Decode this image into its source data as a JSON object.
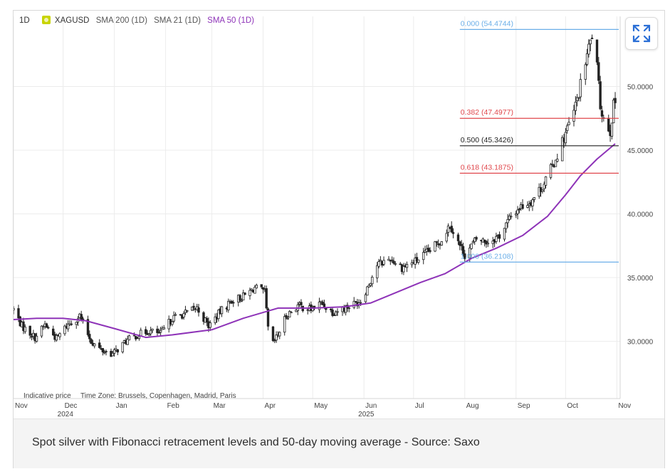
{
  "legend": {
    "timeframe": "1D",
    "symbol": "XAGUSD",
    "sma200": "SMA 200 (1D)",
    "sma21": "SMA 21 (1D)",
    "sma50": "SMA 50 (1D)"
  },
  "footer": {
    "indicative": "Indicative price",
    "timezone": "Time Zone: Brussels, Copenhagen, Madrid, Paris"
  },
  "caption": "Spot silver with Fibonacci retracement levels and 50-day moving average - Source: Saxo",
  "icons": {
    "expand": "expand-arrows-icon",
    "logo": "xagusd-logo-icon"
  },
  "colors": {
    "candle": "#222222",
    "sma50": "#8e33b8",
    "fib_blue": "#6aaee8",
    "fib_red": "#e0474c",
    "fib_black": "#222222",
    "expand_icon": "#2b6fd6"
  },
  "chart_data": {
    "type": "candlestick",
    "instrument": "XAGUSD",
    "timeframe": "1D",
    "ylim": [
      25.5,
      55.5
    ],
    "y_ticks": [
      {
        "value": 30,
        "label": "30.0000"
      },
      {
        "value": 35,
        "label": "35.0000"
      },
      {
        "value": 40,
        "label": "40.0000"
      },
      {
        "value": 45,
        "label": "45.0000"
      },
      {
        "value": 50,
        "label": "50.0000"
      }
    ],
    "x_ticks": [
      {
        "date": "2024-11-01",
        "label": "Nov",
        "year_label": ""
      },
      {
        "date": "2024-12-01",
        "label": "Dec",
        "year_label": "2024"
      },
      {
        "date": "2025-01-01",
        "label": "Jan",
        "year_label": ""
      },
      {
        "date": "2025-02-01",
        "label": "Feb",
        "year_label": ""
      },
      {
        "date": "2025-03-01",
        "label": "Mar",
        "year_label": ""
      },
      {
        "date": "2025-04-01",
        "label": "Apr",
        "year_label": ""
      },
      {
        "date": "2025-05-01",
        "label": "May",
        "year_label": ""
      },
      {
        "date": "2025-06-01",
        "label": "Jun",
        "year_label": "2025"
      },
      {
        "date": "2025-07-01",
        "label": "Jul",
        "year_label": ""
      },
      {
        "date": "2025-08-01",
        "label": "Aug",
        "year_label": ""
      },
      {
        "date": "2025-09-01",
        "label": "Sep",
        "year_label": ""
      },
      {
        "date": "2025-10-01",
        "label": "Oct",
        "year_label": ""
      },
      {
        "date": "2025-11-01",
        "label": "Nov",
        "year_label": ""
      }
    ],
    "x_range": [
      "2024-11-01",
      "2025-11-03"
    ],
    "price_path": [
      [
        "2024-11-01",
        32.5
      ],
      [
        "2024-11-06",
        31.2
      ],
      [
        "2024-11-14",
        30.3
      ],
      [
        "2024-11-20",
        31.3
      ],
      [
        "2024-11-27",
        30.2
      ],
      [
        "2024-12-03",
        31.2
      ],
      [
        "2024-12-11",
        32.0
      ],
      [
        "2024-12-18",
        30.0
      ],
      [
        "2024-12-24",
        29.3
      ],
      [
        "2024-12-31",
        29.0
      ],
      [
        "2025-01-08",
        30.0
      ],
      [
        "2025-01-15",
        30.5
      ],
      [
        "2025-01-22",
        30.8
      ],
      [
        "2025-01-29",
        30.6
      ],
      [
        "2025-02-05",
        31.8
      ],
      [
        "2025-02-13",
        32.2
      ],
      [
        "2025-02-20",
        32.6
      ],
      [
        "2025-02-27",
        31.2
      ],
      [
        "2025-03-06",
        32.3
      ],
      [
        "2025-03-13",
        33.2
      ],
      [
        "2025-03-20",
        33.5
      ],
      [
        "2025-03-27",
        34.2
      ],
      [
        "2025-04-02",
        33.8
      ],
      [
        "2025-04-04",
        31.0
      ],
      [
        "2025-04-07",
        29.8
      ],
      [
        "2025-04-10",
        30.5
      ],
      [
        "2025-04-15",
        32.0
      ],
      [
        "2025-04-22",
        32.8
      ],
      [
        "2025-04-30",
        32.5
      ],
      [
        "2025-05-06",
        33.0
      ],
      [
        "2025-05-13",
        32.3
      ],
      [
        "2025-05-20",
        32.6
      ],
      [
        "2025-05-27",
        33.0
      ],
      [
        "2025-05-30",
        33.2
      ],
      [
        "2025-06-04",
        34.5
      ],
      [
        "2025-06-09",
        36.0
      ],
      [
        "2025-06-17",
        36.5
      ],
      [
        "2025-06-24",
        35.8
      ],
      [
        "2025-07-01",
        36.2
      ],
      [
        "2025-07-10",
        37.0
      ],
      [
        "2025-07-18",
        38.0
      ],
      [
        "2025-07-23",
        39.2
      ],
      [
        "2025-07-29",
        37.5
      ],
      [
        "2025-08-01",
        36.8
      ],
      [
        "2025-08-08",
        38.0
      ],
      [
        "2025-08-15",
        37.8
      ],
      [
        "2025-08-22",
        38.3
      ],
      [
        "2025-08-29",
        39.8
      ],
      [
        "2025-09-03",
        40.5
      ],
      [
        "2025-09-10",
        41.0
      ],
      [
        "2025-09-17",
        42.2
      ],
      [
        "2025-09-24",
        44.0
      ],
      [
        "2025-09-30",
        46.0
      ],
      [
        "2025-10-06",
        48.0
      ],
      [
        "2025-10-09",
        49.5
      ],
      [
        "2025-10-14",
        52.5
      ],
      [
        "2025-10-17",
        54.0
      ],
      [
        "2025-10-20",
        51.5
      ],
      [
        "2025-10-22",
        48.5
      ],
      [
        "2025-10-24",
        47.5
      ],
      [
        "2025-10-28",
        46.5
      ],
      [
        "2025-10-30",
        48.5
      ],
      [
        "2025-10-31",
        48.8
      ]
    ],
    "sma50": [
      [
        "2024-11-01",
        31.7
      ],
      [
        "2024-11-15",
        31.8
      ],
      [
        "2024-12-01",
        31.8
      ],
      [
        "2024-12-15",
        31.6
      ],
      [
        "2025-01-01",
        31.0
      ],
      [
        "2025-01-20",
        30.3
      ],
      [
        "2025-02-05",
        30.5
      ],
      [
        "2025-03-01",
        30.9
      ],
      [
        "2025-03-20",
        31.8
      ],
      [
        "2025-04-10",
        32.6
      ],
      [
        "2025-05-01",
        32.6
      ],
      [
        "2025-05-20",
        32.7
      ],
      [
        "2025-06-05",
        33.0
      ],
      [
        "2025-06-20",
        33.8
      ],
      [
        "2025-07-05",
        34.6
      ],
      [
        "2025-07-20",
        35.3
      ],
      [
        "2025-08-05",
        36.5
      ],
      [
        "2025-08-20",
        37.3
      ],
      [
        "2025-09-05",
        38.3
      ],
      [
        "2025-09-20",
        39.8
      ],
      [
        "2025-10-01",
        41.5
      ],
      [
        "2025-10-10",
        43.0
      ],
      [
        "2025-10-20",
        44.3
      ],
      [
        "2025-10-31",
        45.5
      ]
    ],
    "fibonacci": {
      "start_date": "2025-07-29",
      "end_date": "2025-10-31",
      "levels": [
        {
          "ratio": "0.000",
          "value": 54.4744,
          "label": "0.000 (54.4744)",
          "color": "#6aaee8"
        },
        {
          "ratio": "0.382",
          "value": 47.4977,
          "label": "0.382 (47.4977)",
          "color": "#e0474c"
        },
        {
          "ratio": "0.500",
          "value": 45.3426,
          "label": "0.500 (45.3426)",
          "color": "#222222"
        },
        {
          "ratio": "0.618",
          "value": 43.1875,
          "label": "0.618 (43.1875)",
          "color": "#e0474c"
        },
        {
          "ratio": "1.000",
          "value": 36.2108,
          "label": "1.000 (36.2108)",
          "color": "#6aaee8"
        }
      ]
    },
    "grid": true
  }
}
